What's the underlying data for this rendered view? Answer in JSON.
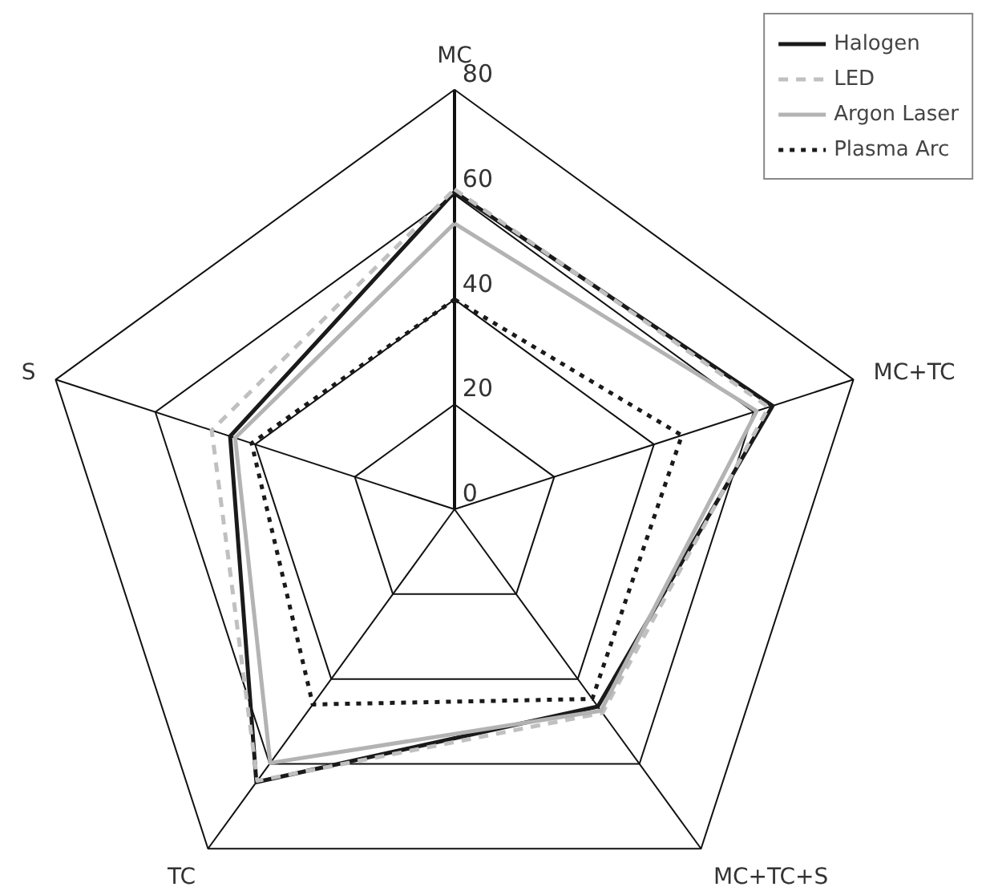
{
  "chart_data": {
    "type": "radar",
    "categories": [
      "MC",
      "MC+TC",
      "MC+TC+S",
      "TC",
      "S"
    ],
    "ylim": [
      0,
      80
    ],
    "yticks": [
      0,
      20,
      40,
      60,
      80
    ],
    "legend": "top right",
    "marker": "none",
    "series": [
      {
        "name": "Halogen",
        "color": "#1a1a1a",
        "line_style": "solid",
        "values": [
          60.5,
          63.8,
          46.5,
          64.3,
          45
        ]
      },
      {
        "name": "LED",
        "color": "#c0c0c0",
        "line_style": "dashed",
        "values": [
          61,
          63,
          48,
          64,
          48.7
        ]
      },
      {
        "name": "Argon Laser",
        "color": "#b3b3b3",
        "line_style": "solid",
        "values": [
          54.5,
          60.6,
          47.5,
          59.8,
          44
        ]
      },
      {
        "name": "Plasma Arc",
        "color": "#1a1a1a",
        "line_style": "dotted",
        "values": [
          40,
          45.6,
          44.7,
          46,
          40.7
        ]
      }
    ]
  }
}
